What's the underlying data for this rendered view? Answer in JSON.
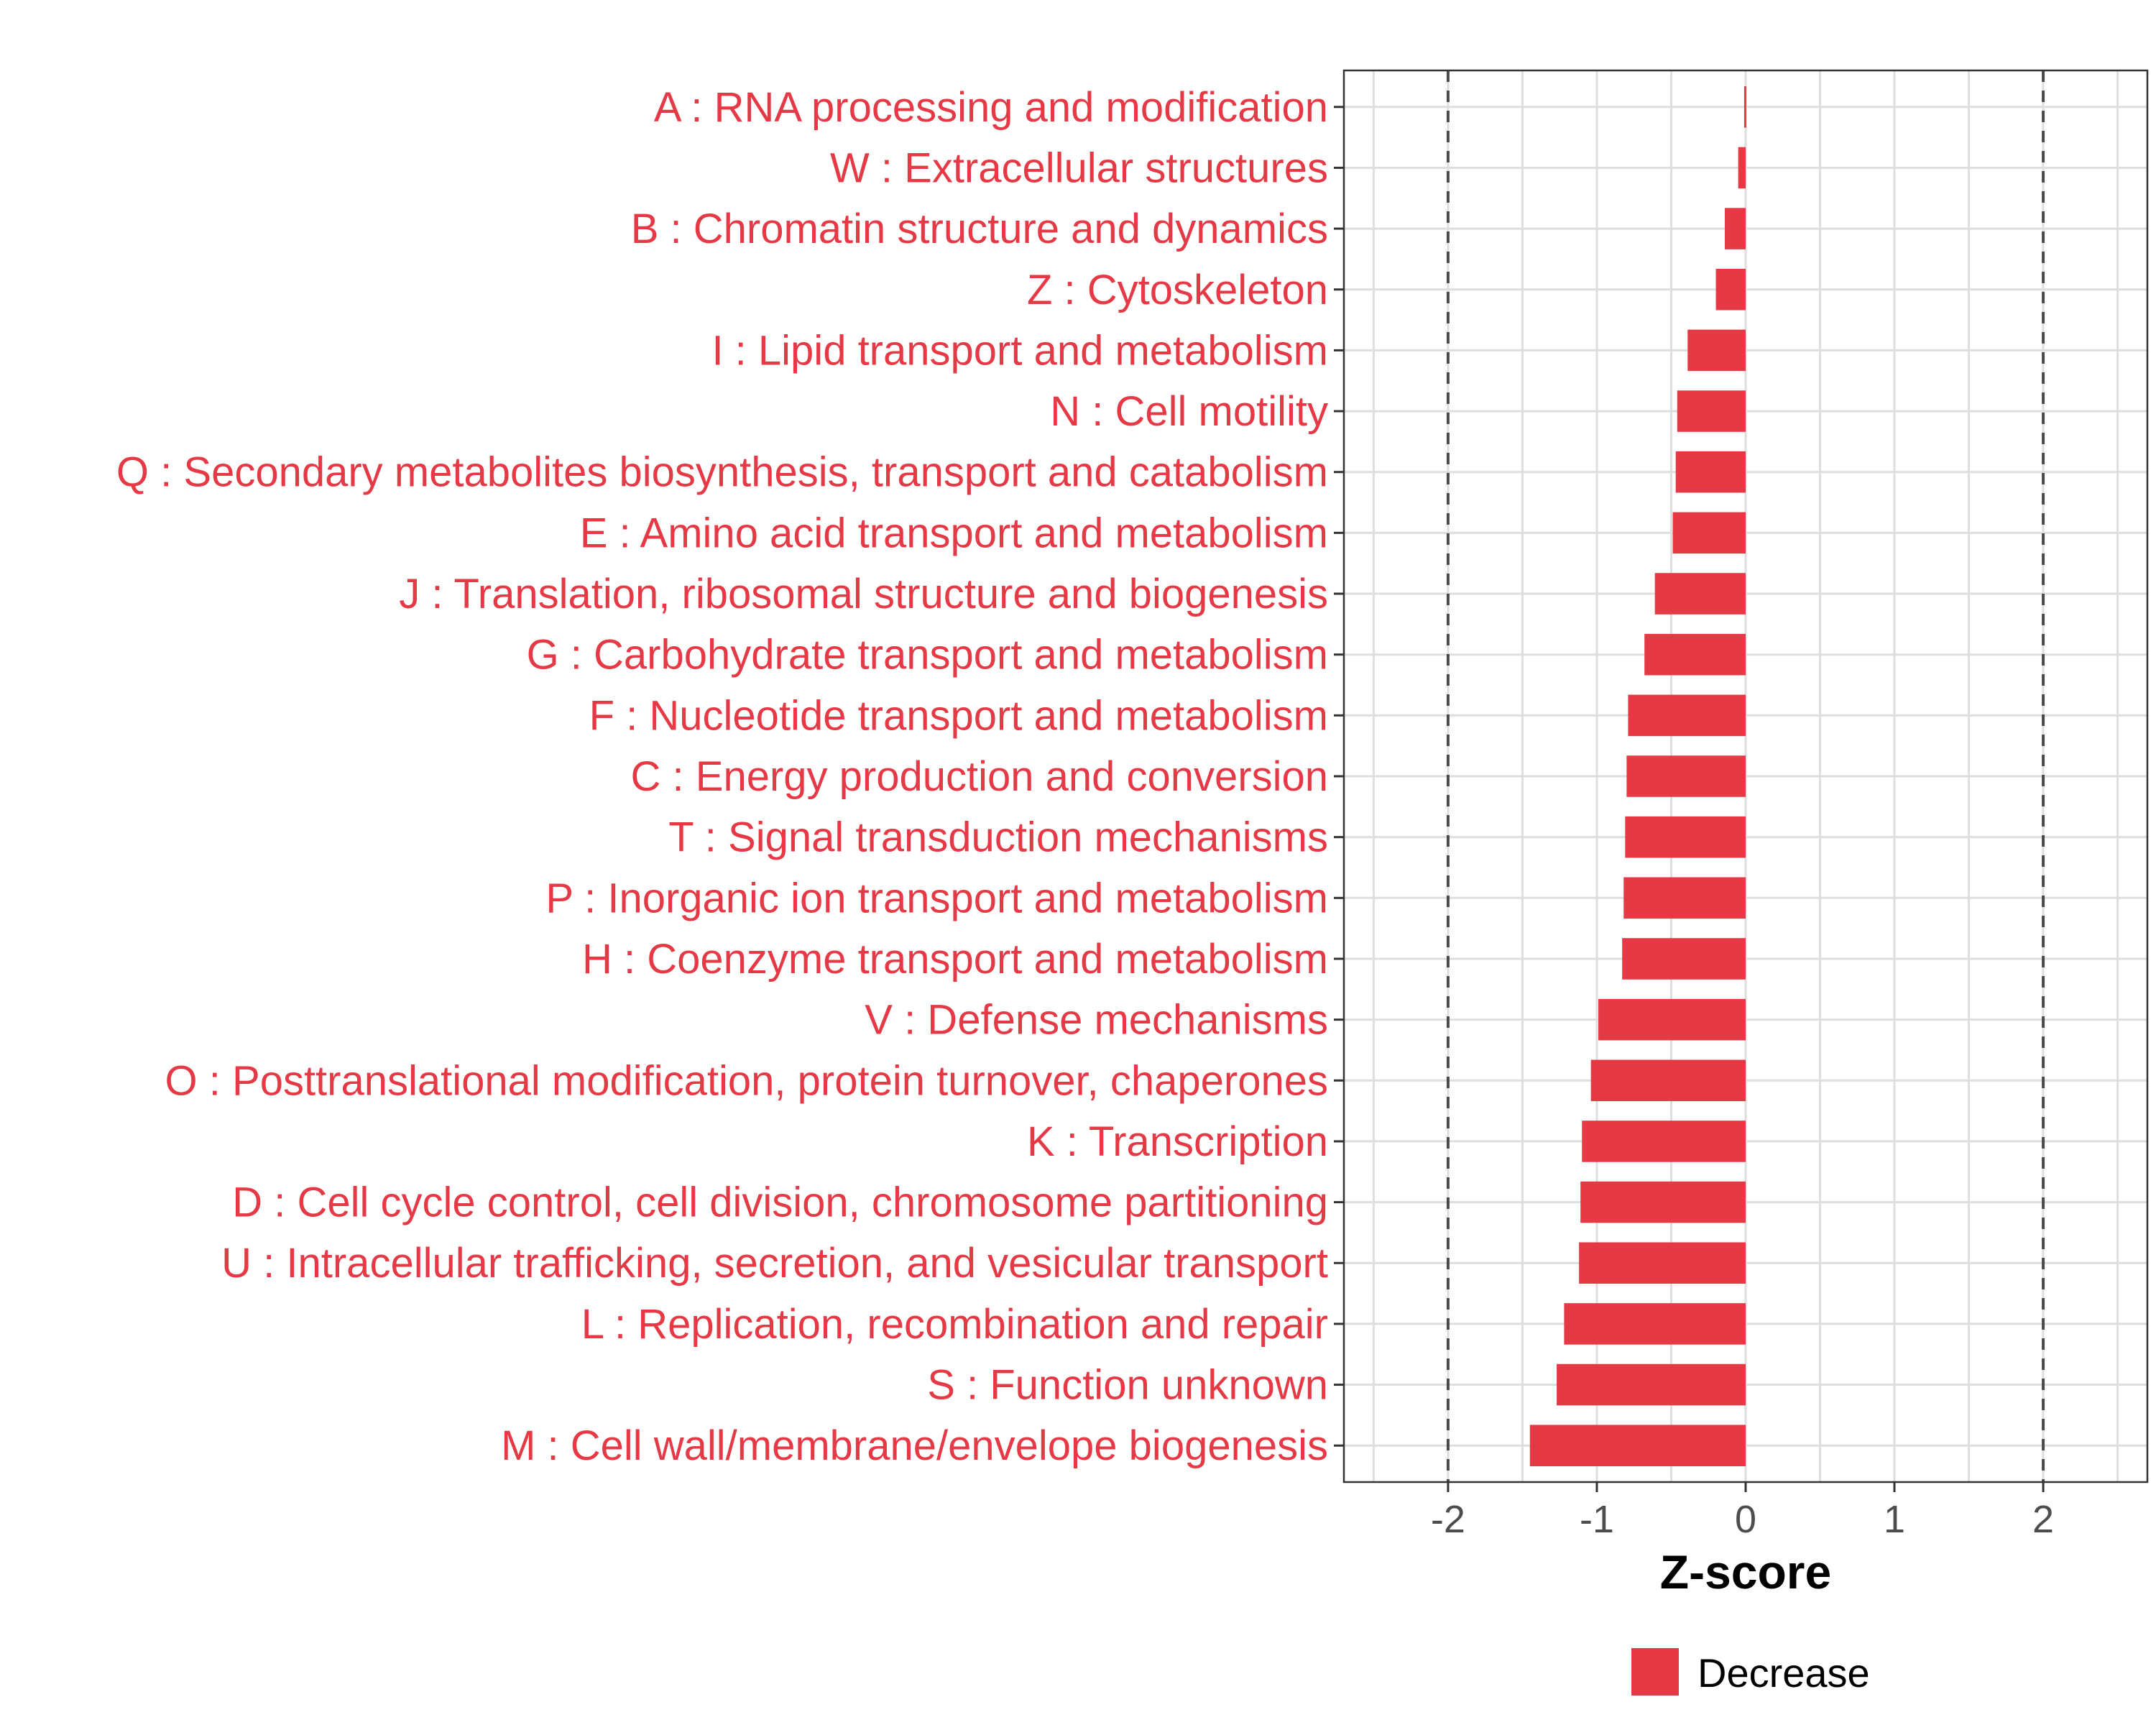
{
  "chart_data": {
    "type": "bar",
    "orientation": "horizontal",
    "title": "",
    "xlabel": "Z-score",
    "ylabel": "",
    "xlim": [
      -2.7,
      2.7
    ],
    "x_ticks": [
      -2,
      -1,
      0,
      1,
      2
    ],
    "x_tick_labels": [
      "-2",
      "-1",
      "0",
      "1",
      "2"
    ],
    "reference_lines": [
      -2,
      2
    ],
    "grid": true,
    "bar_color": "#e63946",
    "label_color": "#e63946",
    "categories": [
      "A : RNA processing and modification",
      "W : Extracellular structures",
      "B : Chromatin structure and dynamics",
      "Z : Cytoskeleton",
      "I : Lipid transport and metabolism",
      "N : Cell motility",
      "Q : Secondary metabolites biosynthesis, transport and catabolism",
      "E : Amino acid transport and metabolism",
      "J : Translation, ribosomal structure and biogenesis",
      "G : Carbohydrate transport and metabolism",
      "F : Nucleotide transport and metabolism",
      "C : Energy production and conversion",
      "T : Signal transduction mechanisms",
      "P : Inorganic ion transport and metabolism",
      "H : Coenzyme transport and metabolism",
      "V : Defense mechanisms",
      "O : Posttranslational modification, protein turnover, chaperones",
      "K : Transcription",
      "D : Cell cycle control, cell division, chromosome partitioning",
      "U : Intracellular trafficking, secretion, and vesicular transport",
      "L : Replication, recombination and repair",
      "S : Function unknown",
      "M : Cell wall/membrane/envelope biogenesis"
    ],
    "values": [
      -0.01,
      -0.05,
      -0.14,
      -0.2,
      -0.39,
      -0.46,
      -0.47,
      -0.49,
      -0.61,
      -0.68,
      -0.79,
      -0.8,
      -0.81,
      -0.82,
      -0.83,
      -0.99,
      -1.04,
      -1.1,
      -1.11,
      -1.12,
      -1.22,
      -1.27,
      -1.45
    ],
    "legend": {
      "position": "bottom",
      "entries": [
        {
          "label": "Decrease",
          "color": "#e63946"
        }
      ]
    }
  }
}
